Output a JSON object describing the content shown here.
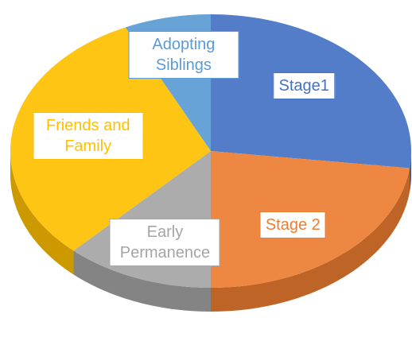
{
  "chart_data": {
    "type": "pie3d",
    "categories": [
      "Stage1",
      "Stage 2",
      "Early Permanence",
      "Friends and Family",
      "Adopting Siblings"
    ],
    "values": [
      27,
      23,
      12,
      31,
      7
    ],
    "colors": [
      "#4472c4",
      "#ed7d31",
      "#a5a5a5",
      "#ffc000",
      "#5b9bd5"
    ]
  }
}
